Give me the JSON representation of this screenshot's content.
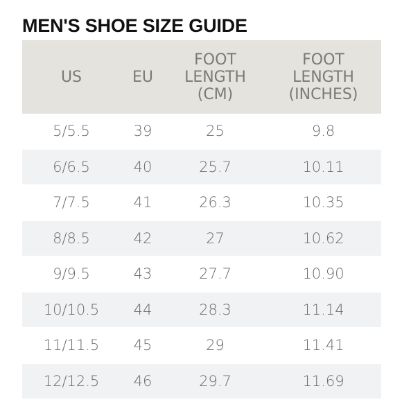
{
  "title": "MEN'S SHOE SIZE GUIDE",
  "headers": {
    "us": "US",
    "eu": "EU",
    "cm": [
      "FOOT",
      "LENGTH",
      "(CM)"
    ],
    "inches": [
      "FOOT",
      "LENGTH",
      "(INCHES)"
    ]
  },
  "rows": [
    {
      "us": "5/5.5",
      "eu": "39",
      "cm": "25",
      "inches": "9.8"
    },
    {
      "us": "6/6.5",
      "eu": "40",
      "cm": "25.7",
      "inches": "10.11"
    },
    {
      "us": "7/7.5",
      "eu": "41",
      "cm": "26.3",
      "inches": "10.35"
    },
    {
      "us": "8/8.5",
      "eu": "42",
      "cm": "27",
      "inches": "10.62"
    },
    {
      "us": "9/9.5",
      "eu": "43",
      "cm": "27.7",
      "inches": "10.90"
    },
    {
      "us": "10/10.5",
      "eu": "44",
      "cm": "28.3",
      "inches": "11.14"
    },
    {
      "us": "11/11.5",
      "eu": "45",
      "cm": "29",
      "inches": "11.41"
    },
    {
      "us": "12/12.5",
      "eu": "46",
      "cm": "29.7",
      "inches": "11.69"
    }
  ],
  "colors": {
    "header_bg": "#e4e3dd",
    "header_text": "#7a7a7a",
    "row_alt_bg": "#f1f2f4",
    "cell_text": "#6c6c6c",
    "title_text": "#111111"
  }
}
